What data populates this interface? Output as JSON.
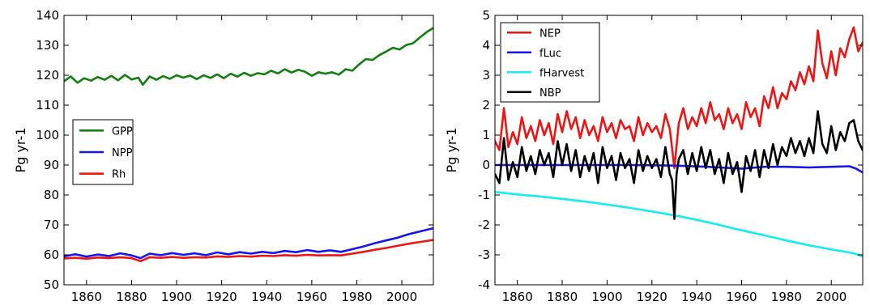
{
  "chart_data": [
    {
      "type": "line",
      "title": "",
      "xlabel": "",
      "ylabel": "Pg yr-1",
      "xlim": [
        1850,
        2014
      ],
      "ylim": [
        50,
        140
      ],
      "xticks": [
        1860,
        1880,
        1900,
        1920,
        1940,
        1960,
        1980,
        2000
      ],
      "yticks": [
        50,
        60,
        70,
        80,
        90,
        100,
        110,
        120,
        130,
        140
      ],
      "grid": false,
      "legend_position": "center-left",
      "series": [
        {
          "name": "GPP",
          "color": "#118011",
          "x": [
            1850,
            1853,
            1856,
            1859,
            1862,
            1865,
            1868,
            1871,
            1874,
            1877,
            1880,
            1883,
            1885,
            1888,
            1891,
            1894,
            1897,
            1900,
            1903,
            1906,
            1909,
            1912,
            1915,
            1918,
            1921,
            1924,
            1927,
            1930,
            1933,
            1936,
            1939,
            1942,
            1945,
            1948,
            1951,
            1954,
            1957,
            1960,
            1963,
            1966,
            1969,
            1972,
            1975,
            1978,
            1981,
            1984,
            1987,
            1990,
            1993,
            1996,
            1999,
            2002,
            2005,
            2008,
            2011,
            2014
          ],
          "y": [
            118.0,
            119.6,
            117.5,
            119.0,
            118.2,
            119.4,
            118.5,
            119.8,
            118.3,
            120.1,
            118.6,
            119.2,
            116.8,
            119.6,
            118.5,
            119.7,
            118.8,
            120.0,
            119.2,
            119.9,
            118.7,
            120.0,
            119.1,
            120.3,
            119.0,
            120.5,
            119.5,
            120.8,
            119.8,
            120.7,
            120.3,
            121.5,
            120.6,
            122.0,
            120.9,
            121.8,
            121.2,
            119.8,
            121.0,
            120.5,
            121.0,
            120.2,
            122.0,
            121.5,
            123.6,
            125.4,
            125.1,
            126.7,
            127.9,
            129.2,
            128.6,
            130.1,
            130.7,
            132.6,
            134.4,
            135.8
          ]
        },
        {
          "name": "NPP",
          "color": "#1515ee",
          "x": [
            1850,
            1855,
            1860,
            1865,
            1870,
            1875,
            1880,
            1884,
            1888,
            1893,
            1898,
            1903,
            1908,
            1913,
            1918,
            1923,
            1928,
            1933,
            1938,
            1943,
            1948,
            1953,
            1958,
            1963,
            1968,
            1973,
            1978,
            1983,
            1988,
            1993,
            1998,
            2003,
            2008,
            2014
          ],
          "y": [
            59.5,
            60.2,
            59.4,
            60.1,
            59.6,
            60.5,
            59.8,
            58.9,
            60.4,
            59.9,
            60.6,
            60.0,
            60.5,
            59.9,
            60.8,
            60.2,
            60.9,
            60.4,
            61.0,
            60.6,
            61.3,
            60.9,
            61.6,
            61.0,
            61.5,
            61.0,
            61.9,
            62.8,
            63.9,
            64.8,
            65.7,
            66.9,
            67.8,
            68.9
          ]
        },
        {
          "name": "Rh",
          "color": "#ee1515",
          "x": [
            1850,
            1855,
            1860,
            1865,
            1870,
            1875,
            1880,
            1884,
            1888,
            1893,
            1898,
            1903,
            1908,
            1913,
            1918,
            1923,
            1928,
            1933,
            1938,
            1943,
            1948,
            1953,
            1958,
            1963,
            1968,
            1973,
            1978,
            1983,
            1988,
            1993,
            1998,
            2003,
            2008,
            2014
          ],
          "y": [
            58.8,
            59.0,
            58.7,
            59.1,
            58.9,
            59.2,
            58.9,
            57.9,
            59.2,
            59.0,
            59.3,
            59.0,
            59.2,
            59.1,
            59.5,
            59.3,
            59.6,
            59.4,
            59.7,
            59.6,
            59.9,
            59.7,
            60.0,
            59.8,
            59.9,
            59.8,
            60.4,
            61.0,
            61.7,
            62.3,
            63.0,
            63.7,
            64.3,
            65.0
          ]
        }
      ]
    },
    {
      "type": "line",
      "title": "",
      "xlabel": "",
      "ylabel": "Pg yr-1",
      "xlim": [
        1850,
        2014
      ],
      "ylim": [
        -4,
        5
      ],
      "xticks": [
        1860,
        1880,
        1900,
        1920,
        1940,
        1960,
        1980,
        2000
      ],
      "yticks": [
        -4,
        -3,
        -2,
        -1,
        0,
        1,
        2,
        3,
        4,
        5
      ],
      "grid": false,
      "legend_position": "top-left",
      "series": [
        {
          "name": "NEP",
          "color": "#ee1515",
          "x": [
            1850,
            1852,
            1854,
            1856,
            1858,
            1860,
            1862,
            1864,
            1866,
            1868,
            1870,
            1872,
            1874,
            1876,
            1878,
            1880,
            1882,
            1884,
            1886,
            1888,
            1890,
            1892,
            1894,
            1896,
            1898,
            1900,
            1902,
            1904,
            1906,
            1908,
            1910,
            1912,
            1914,
            1916,
            1918,
            1920,
            1922,
            1924,
            1926,
            1928,
            1930,
            1932,
            1934,
            1936,
            1938,
            1940,
            1942,
            1944,
            1946,
            1948,
            1950,
            1952,
            1954,
            1956,
            1958,
            1960,
            1962,
            1964,
            1966,
            1968,
            1970,
            1972,
            1974,
            1976,
            1978,
            1980,
            1982,
            1984,
            1986,
            1988,
            1990,
            1992,
            1994,
            1996,
            1998,
            2000,
            2002,
            2004,
            2006,
            2008,
            2010,
            2012,
            2014
          ],
          "y": [
            0.8,
            0.5,
            1.9,
            0.6,
            1.1,
            0.7,
            1.6,
            0.9,
            1.3,
            0.8,
            1.5,
            1.0,
            1.4,
            0.7,
            1.7,
            1.1,
            1.8,
            1.2,
            1.6,
            0.9,
            1.5,
            1.0,
            1.3,
            0.8,
            1.6,
            1.1,
            1.4,
            0.9,
            1.5,
            1.2,
            1.3,
            0.8,
            1.6,
            1.0,
            1.4,
            1.1,
            1.3,
            0.9,
            1.7,
            1.2,
            -0.1,
            1.4,
            1.9,
            1.2,
            1.6,
            1.3,
            1.9,
            1.4,
            2.1,
            1.5,
            1.7,
            1.2,
            1.9,
            1.4,
            1.7,
            1.2,
            2.1,
            1.6,
            1.9,
            1.3,
            2.3,
            1.9,
            2.6,
            1.9,
            2.4,
            2.2,
            2.8,
            2.5,
            3.1,
            2.7,
            3.3,
            2.8,
            4.5,
            3.4,
            2.9,
            3.8,
            3.0,
            3.9,
            3.6,
            4.2,
            4.6,
            3.8,
            4.1
          ]
        },
        {
          "name": "fLuc",
          "color": "#1515ee",
          "x": [
            1850,
            1870,
            1890,
            1910,
            1930,
            1945,
            1955,
            1960,
            1970,
            1980,
            1990,
            2000,
            2008,
            2011,
            2014
          ],
          "y": [
            0.0,
            0.0,
            0.0,
            0.0,
            -0.02,
            -0.06,
            -0.1,
            -0.12,
            -0.06,
            -0.06,
            -0.08,
            -0.06,
            -0.04,
            -0.12,
            -0.25
          ]
        },
        {
          "name": "fHarvest",
          "color": "#15eeee",
          "x": [
            1850,
            1860,
            1870,
            1880,
            1890,
            1900,
            1910,
            1920,
            1930,
            1940,
            1950,
            1960,
            1970,
            1980,
            1990,
            2000,
            2010,
            2014
          ],
          "y": [
            -0.9,
            -0.98,
            -1.05,
            -1.13,
            -1.22,
            -1.32,
            -1.43,
            -1.55,
            -1.68,
            -1.83,
            -2.0,
            -2.18,
            -2.35,
            -2.52,
            -2.68,
            -2.82,
            -2.95,
            -3.05
          ]
        },
        {
          "name": "NBP",
          "color": "#000000",
          "x": [
            1850,
            1852,
            1854,
            1856,
            1858,
            1860,
            1862,
            1864,
            1866,
            1868,
            1870,
            1872,
            1874,
            1876,
            1878,
            1880,
            1882,
            1884,
            1886,
            1888,
            1890,
            1892,
            1894,
            1896,
            1898,
            1900,
            1902,
            1904,
            1906,
            1908,
            1910,
            1912,
            1914,
            1916,
            1918,
            1920,
            1922,
            1924,
            1926,
            1928,
            1929,
            1930,
            1931,
            1932,
            1934,
            1936,
            1938,
            1940,
            1942,
            1944,
            1946,
            1948,
            1950,
            1952,
            1954,
            1956,
            1958,
            1960,
            1962,
            1964,
            1966,
            1968,
            1970,
            1972,
            1974,
            1976,
            1978,
            1980,
            1982,
            1984,
            1986,
            1988,
            1990,
            1992,
            1994,
            1996,
            1998,
            2000,
            2002,
            2004,
            2006,
            2008,
            2010,
            2012,
            2014
          ],
          "y": [
            -0.3,
            -0.6,
            0.9,
            -0.5,
            0.1,
            -0.4,
            0.6,
            -0.2,
            0.3,
            -0.3,
            0.5,
            0.0,
            0.4,
            -0.4,
            0.8,
            0.0,
            0.7,
            -0.2,
            0.5,
            -0.4,
            0.3,
            -0.2,
            0.4,
            -0.6,
            0.6,
            -0.1,
            0.3,
            -0.5,
            0.4,
            -0.1,
            0.2,
            -0.6,
            0.5,
            -0.2,
            0.3,
            -0.1,
            0.2,
            -0.4,
            0.6,
            -0.3,
            -0.5,
            -1.8,
            -0.3,
            0.2,
            0.5,
            -0.3,
            0.4,
            -0.2,
            0.6,
            -0.1,
            0.5,
            -0.3,
            0.2,
            -0.6,
            0.4,
            -0.3,
            0.1,
            -0.9,
            0.3,
            -0.2,
            0.5,
            -0.4,
            0.5,
            -0.1,
            0.7,
            0.0,
            0.6,
            0.3,
            0.9,
            0.4,
            0.8,
            0.3,
            0.9,
            0.4,
            1.8,
            0.7,
            0.4,
            1.3,
            0.5,
            1.1,
            0.8,
            1.4,
            1.5,
            0.8,
            0.5
          ]
        }
      ]
    }
  ]
}
